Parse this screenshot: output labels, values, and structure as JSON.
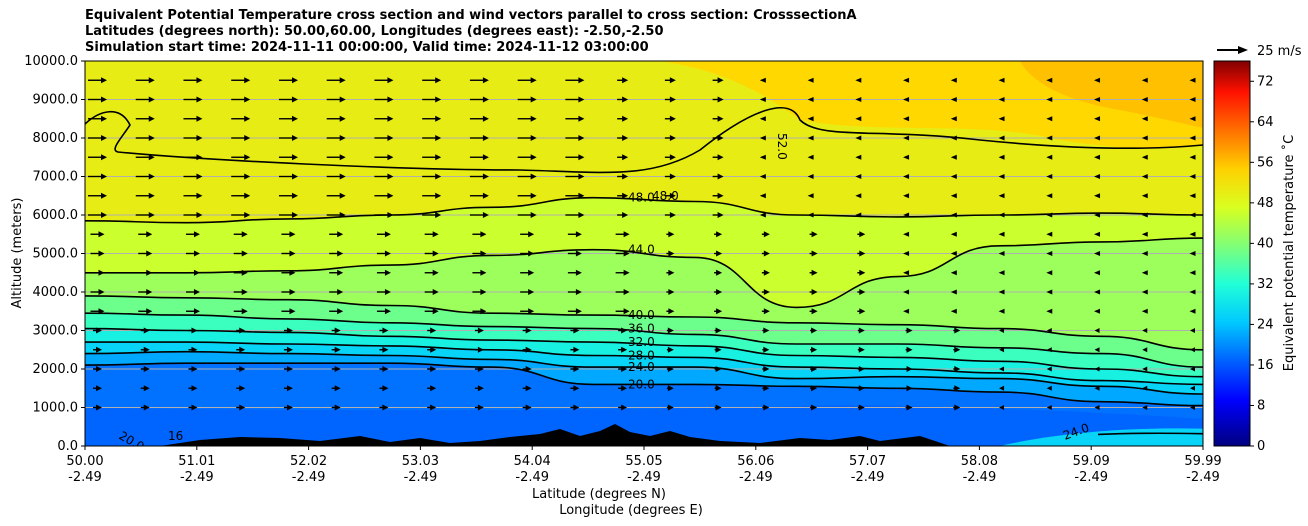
{
  "chart_data": {
    "type": "contour-cross-section",
    "title": [
      "Equivalent Potential Temperature cross section and wind vectors parallel to cross section: CrosssectionA",
      "Latitudes (degrees north): 50.00,60.00, Longitudes (degrees east): -2.50,-2.50",
      "Simulation start time: 2024-11-11 00:00:00, Valid time: 2024-11-12 03:00:00"
    ],
    "ylabel": "Altitude (meters)",
    "xlabel_lat": "Latitude (degrees N)",
    "xlabel_lon": "Longitude (degrees E)",
    "ylim": [
      0,
      10000
    ],
    "yticks": [
      "0.0",
      "1000.0",
      "2000.0",
      "3000.0",
      "4000.0",
      "5000.0",
      "6000.0",
      "7000.0",
      "8000.0",
      "9000.0",
      "10000.0"
    ],
    "xticks_lat": [
      "50.00",
      "51.01",
      "52.02",
      "53.03",
      "54.04",
      "55.05",
      "56.06",
      "57.07",
      "58.08",
      "59.09",
      "59.99"
    ],
    "xticks_lon": [
      "-2.49",
      "-2.49",
      "-2.49",
      "-2.49",
      "-2.49",
      "-2.49",
      "-2.49",
      "-2.49",
      "-2.49",
      "-2.49",
      "-2.49"
    ],
    "colorbar_label": "Equivalent potential temperature $^\\circ$C",
    "colorbar_label_display": "Equivalent potential temperature ˚C",
    "colorbar_ticks": [
      "0",
      "8",
      "16",
      "24",
      "32",
      "40",
      "48",
      "56",
      "64",
      "72"
    ],
    "colorbar_range": [
      0,
      76
    ],
    "quiver_key": "25 m/s",
    "contour_levels": [
      {
        "value": 20,
        "label": "20.0",
        "heights_m": [
          2100,
          2150,
          2150,
          2150,
          2050,
          1600,
          1600,
          1550,
          1500,
          1400,
          1150,
          1050
        ]
      },
      {
        "value": 24,
        "label": "24.0",
        "heights_m": [
          2400,
          2450,
          2400,
          2350,
          2250,
          2050,
          2050,
          1750,
          1800,
          1750,
          1550,
          1350
        ]
      },
      {
        "value": 28,
        "label": "28.0",
        "heights_m": [
          2700,
          2700,
          2650,
          2600,
          2500,
          2350,
          2300,
          2050,
          2000,
          1900,
          1700,
          1600
        ]
      },
      {
        "value": 32,
        "label": "32.0",
        "heights_m": [
          3050,
          3000,
          2950,
          2850,
          2750,
          2700,
          2600,
          2350,
          2300,
          2200,
          2000,
          1800
        ]
      },
      {
        "value": 36,
        "label": "36.0",
        "heights_m": [
          3450,
          3400,
          3300,
          3200,
          3100,
          3050,
          2900,
          2650,
          2650,
          2550,
          2400,
          2050
        ]
      },
      {
        "value": 40,
        "label": "40.0",
        "heights_m": [
          3900,
          3850,
          3800,
          3650,
          3450,
          3400,
          3350,
          3200,
          3150,
          3050,
          2850,
          2500
        ]
      },
      {
        "value": 44,
        "label": "44.0",
        "heights_m": [
          4500,
          4500,
          4550,
          4700,
          4950,
          5100,
          4900,
          3600,
          4400,
          5200,
          5300,
          5400
        ]
      },
      {
        "value": 48,
        "label": "48.0",
        "heights_m": [
          5850,
          5800,
          5900,
          6000,
          6200,
          6450,
          6350,
          6000,
          5950,
          6000,
          6050,
          6000
        ]
      }
    ],
    "contour_labels_extra": [
      "16",
      "20.0",
      "24.0",
      "48.0",
      "52.0"
    ],
    "field_bands_c": [
      16,
      20,
      24,
      28,
      32,
      36,
      40,
      44,
      48,
      52
    ],
    "wind": {
      "rows_m": [
        9500,
        9000,
        8500,
        8000,
        7500,
        7000,
        6500,
        6000,
        5500,
        5000,
        4500,
        4000,
        3500,
        3000,
        2500,
        2000,
        1500,
        1000
      ],
      "description": "strong eastward (rightward) flow aloft in the southern half, weak/reversed flow to the north"
    }
  }
}
